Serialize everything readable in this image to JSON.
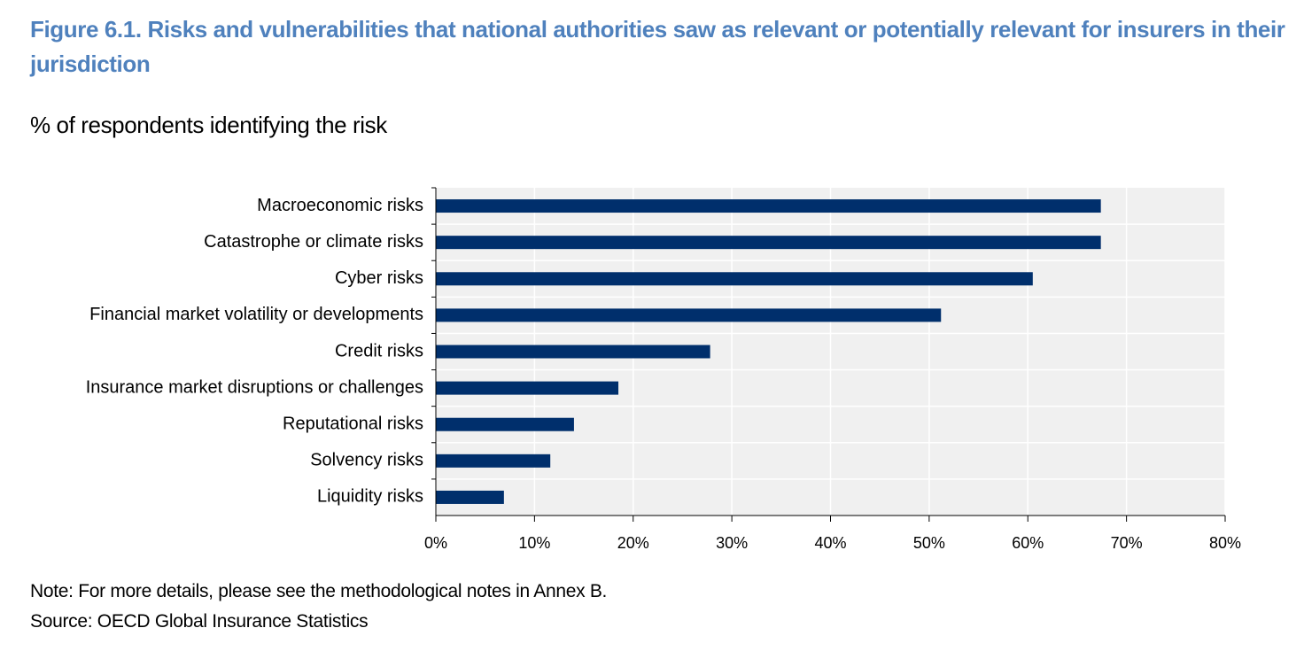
{
  "chart_data": {
    "type": "hbar",
    "title": "Figure 6.1. Risks and vulnerabilities that national authorities saw as relevant or potentially relevant for insurers in their jurisdiction",
    "subtitle": "% of respondents identifying the risk",
    "categories": [
      "Macroeconomic risks",
      "Catastrophe or climate risks",
      "Cyber risks",
      "Financial market volatility or developments",
      "Credit risks",
      "Insurance market disruptions or challenges",
      "Reputational risks",
      "Solvency risks",
      "Liquidity risks"
    ],
    "values": [
      67.4,
      67.4,
      60.5,
      51.2,
      27.8,
      18.5,
      14.0,
      11.6,
      6.9
    ],
    "color": "#002f6c",
    "xlim": [
      0,
      80
    ],
    "xticks": [
      {
        "value": 0,
        "label": "0%"
      },
      {
        "value": 10,
        "label": "10%"
      },
      {
        "value": 20,
        "label": "20%"
      },
      {
        "value": 30,
        "label": "30%"
      },
      {
        "value": 40,
        "label": "40%"
      },
      {
        "value": 50,
        "label": "50%"
      },
      {
        "value": 60,
        "label": "60%"
      },
      {
        "value": 70,
        "label": "70%"
      },
      {
        "value": 80,
        "label": "80%"
      }
    ],
    "grid": true,
    "note": "Note: For more details, please see the methodological notes in Annex B.",
    "source": "Source: OECD Global Insurance Statistics"
  }
}
